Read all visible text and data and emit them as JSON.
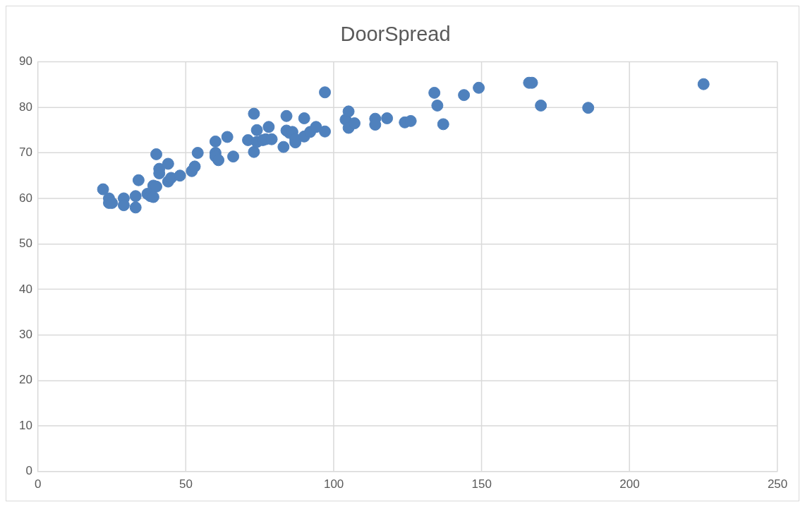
{
  "chart_data": {
    "type": "scatter",
    "title": "DoorSpread",
    "x": [
      22,
      24,
      24,
      25,
      29,
      29,
      33,
      33,
      34,
      37,
      38,
      39,
      39,
      40,
      40,
      41,
      41,
      44,
      44,
      45,
      48,
      52,
      53,
      54,
      60,
      60,
      60,
      61,
      64,
      66,
      71,
      73,
      73,
      74,
      74,
      76,
      77,
      78,
      79,
      83,
      84,
      84,
      85,
      86,
      87,
      87,
      90,
      90,
      92,
      94,
      97,
      97,
      104,
      105,
      105,
      107,
      114,
      114,
      118,
      124,
      126,
      134,
      135,
      137,
      144,
      149,
      166,
      167,
      170,
      186,
      225
    ],
    "series": [
      {
        "color": "#4f81bd",
        "values": [
          62,
          60,
          59,
          59,
          60,
          58.5,
          60.5,
          58,
          64,
          61,
          60.5,
          62.8,
          60.3,
          62.6,
          69.7,
          66.5,
          65.5,
          67.6,
          63.7,
          64.5,
          65,
          66,
          67,
          70,
          72.5,
          70,
          69.2,
          68.4,
          73.5,
          69.2,
          72.8,
          78.6,
          70.2,
          75,
          72.4,
          72.8,
          73,
          75.7,
          73,
          71.3,
          78.1,
          74.9,
          74.4,
          74.6,
          72.3,
          73,
          77.6,
          73.6,
          74.6,
          75.7,
          74.7,
          83.3,
          77.3,
          79.1,
          75.5,
          76.5,
          77.5,
          76.2,
          77.6,
          76.7,
          77,
          83.2,
          80.4,
          76.3,
          82.7,
          84.3,
          85.4,
          85.4,
          80.4,
          79.9,
          85.1
        ]
      }
    ],
    "xlim": [
      0,
      250
    ],
    "xticks": [
      0,
      50,
      100,
      150,
      200,
      250
    ],
    "ylim": [
      0,
      90
    ],
    "yticks": [
      0,
      10,
      20,
      30,
      40,
      50,
      60,
      70,
      80,
      90
    ],
    "grid": true,
    "marker": "circle"
  }
}
